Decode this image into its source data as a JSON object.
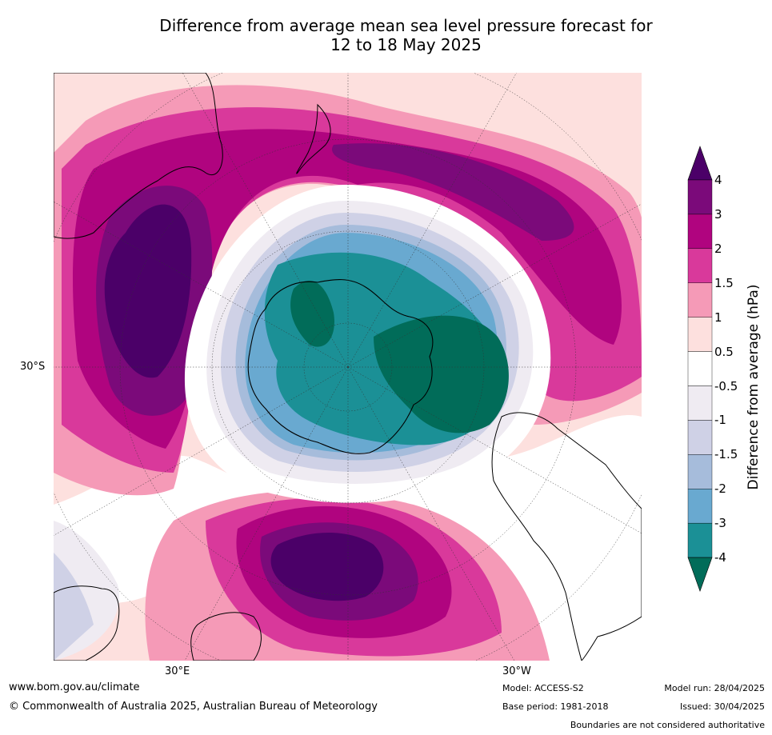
{
  "title": {
    "line1": "Difference from average mean sea level pressure forecast for",
    "line2": "12 to 18 May 2025"
  },
  "map": {
    "projection": "south-polar stereographic",
    "lat_label": "30°S",
    "lon_labels": [
      "30°E",
      "30°W"
    ]
  },
  "colorbar": {
    "label": "Difference from average (hPa)",
    "ticks": [
      "4",
      "3",
      "2",
      "1.5",
      "1",
      "0.5",
      "-0.5",
      "-1",
      "-1.5",
      "-2",
      "-3",
      "-4"
    ],
    "colors": [
      "#4b0068",
      "#7b0a7a",
      "#b0047f",
      "#d9399b",
      "#f59ab7",
      "#fde0de",
      "#ffffff",
      "#efebf2",
      "#cfd1e6",
      "#a6bcdb",
      "#69a9d0",
      "#1b9096",
      "#016c59"
    ]
  },
  "footer": {
    "url": "www.bom.gov.au/climate",
    "copyright": "© Commonwealth of Australia 2025, Australian Bureau of Meteorology",
    "model": "Model: ACCESS-S2",
    "base_period": "Base period: 1981-2018",
    "model_run": "Model run: 28/04/2025",
    "issued": "Issued: 30/04/2025",
    "disclaimer": "Boundaries are not considered authoritative"
  }
}
